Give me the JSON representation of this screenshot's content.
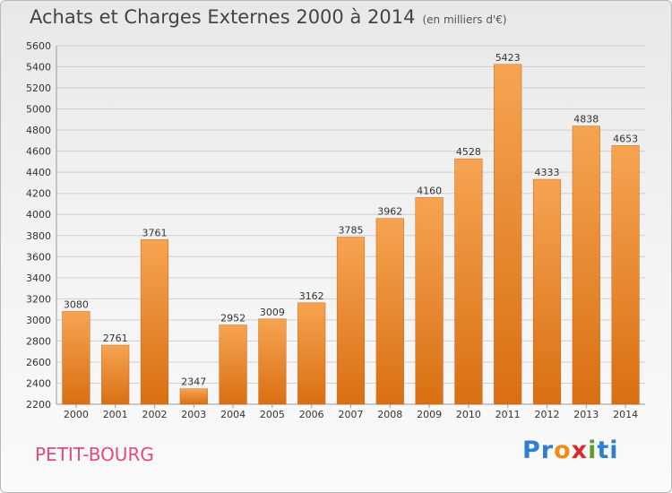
{
  "title": "Achats et Charges Externes 2000 à 2014",
  "unit": "(en milliers d'€)",
  "place": "PETIT-BOURG",
  "logo": {
    "text": "Proxiti",
    "p1": "Pr",
    "p2": "o",
    "p3": "x",
    "p4": "i",
    "p5": "ti"
  },
  "colors": {
    "bar_light": "#f6a452",
    "bar_dark": "#d96f12",
    "grid": "#cfcfcf",
    "place": "#e5497d"
  },
  "chart_data": {
    "type": "bar",
    "categories": [
      "2000",
      "2001",
      "2002",
      "2003",
      "2004",
      "2005",
      "2006",
      "2007",
      "2008",
      "2009",
      "2010",
      "2011",
      "2012",
      "2013",
      "2014"
    ],
    "values": [
      3080,
      2761,
      3761,
      2347,
      2952,
      3009,
      3162,
      3785,
      3962,
      4160,
      4528,
      5423,
      4333,
      4838,
      4653
    ],
    "ylim": [
      2200,
      5600
    ],
    "yticks": [
      2200,
      2400,
      2600,
      2800,
      3000,
      3200,
      3400,
      3600,
      3800,
      4000,
      4200,
      4400,
      4600,
      4800,
      5000,
      5200,
      5400,
      5600
    ],
    "grid": true
  }
}
